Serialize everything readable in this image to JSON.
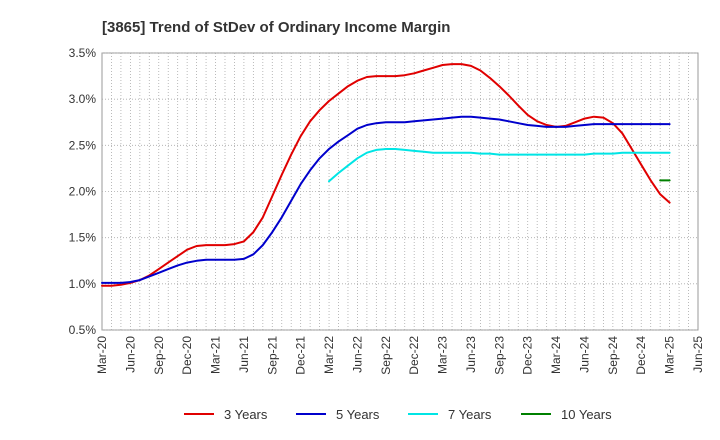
{
  "chart_data": {
    "type": "line",
    "title": "[3865]  Trend of StDev of Ordinary Income Margin",
    "xlabel": "",
    "ylabel": "",
    "ylim": [
      0.5,
      3.5
    ],
    "y_ticks": [
      "0.5%",
      "1.0%",
      "1.5%",
      "2.0%",
      "2.5%",
      "3.0%",
      "3.5%"
    ],
    "y_tick_values": [
      0.5,
      1.0,
      1.5,
      2.0,
      2.5,
      3.0,
      3.5
    ],
    "x_ticks": [
      "Mar-20",
      "Jun-20",
      "Sep-20",
      "Dec-20",
      "Mar-21",
      "Jun-21",
      "Sep-21",
      "Dec-21",
      "Mar-22",
      "Jun-22",
      "Sep-22",
      "Dec-22",
      "Mar-23",
      "Jun-23",
      "Sep-23",
      "Dec-23",
      "Mar-24",
      "Jun-24",
      "Sep-24",
      "Dec-24",
      "Mar-25",
      "Jun-25"
    ],
    "grid": true,
    "legend_position": "bottom",
    "series": [
      {
        "name": "3 Years",
        "color": "#e00000",
        "x": [
          "2020-03",
          "2020-04",
          "2020-05",
          "2020-06",
          "2020-07",
          "2020-08",
          "2020-09",
          "2020-10",
          "2020-11",
          "2020-12",
          "2021-01",
          "2021-02",
          "2021-03",
          "2021-04",
          "2021-05",
          "2021-06",
          "2021-07",
          "2021-08",
          "2021-09",
          "2021-10",
          "2021-11",
          "2021-12",
          "2022-01",
          "2022-02",
          "2022-03",
          "2022-04",
          "2022-05",
          "2022-06",
          "2022-07",
          "2022-08",
          "2022-09",
          "2022-10",
          "2022-11",
          "2022-12",
          "2023-01",
          "2023-02",
          "2023-03",
          "2023-04",
          "2023-05",
          "2023-06",
          "2023-07",
          "2023-08",
          "2023-09",
          "2023-10",
          "2023-11",
          "2023-12",
          "2024-01",
          "2024-02",
          "2024-03",
          "2024-04",
          "2024-05",
          "2024-06",
          "2024-07",
          "2024-08",
          "2024-09",
          "2024-10",
          "2024-11",
          "2024-12",
          "2025-01",
          "2025-02",
          "2025-03"
        ],
        "values": [
          0.98,
          0.98,
          0.99,
          1.01,
          1.04,
          1.09,
          1.16,
          1.23,
          1.3,
          1.37,
          1.41,
          1.42,
          1.42,
          1.42,
          1.43,
          1.46,
          1.56,
          1.72,
          1.95,
          2.18,
          2.4,
          2.6,
          2.76,
          2.88,
          2.98,
          3.06,
          3.14,
          3.2,
          3.24,
          3.25,
          3.25,
          3.25,
          3.26,
          3.28,
          3.31,
          3.34,
          3.37,
          3.38,
          3.38,
          3.36,
          3.31,
          3.23,
          3.14,
          3.04,
          2.93,
          2.83,
          2.76,
          2.72,
          2.7,
          2.71,
          2.75,
          2.79,
          2.81,
          2.8,
          2.74,
          2.63,
          2.46,
          2.29,
          2.12,
          1.97,
          1.88
        ]
      },
      {
        "name": "5 Years",
        "color": "#0000cc",
        "x": [
          "2020-03",
          "2020-04",
          "2020-05",
          "2020-06",
          "2020-07",
          "2020-08",
          "2020-09",
          "2020-10",
          "2020-11",
          "2020-12",
          "2021-01",
          "2021-02",
          "2021-03",
          "2021-04",
          "2021-05",
          "2021-06",
          "2021-07",
          "2021-08",
          "2021-09",
          "2021-10",
          "2021-11",
          "2021-12",
          "2022-01",
          "2022-02",
          "2022-03",
          "2022-04",
          "2022-05",
          "2022-06",
          "2022-07",
          "2022-08",
          "2022-09",
          "2022-10",
          "2022-11",
          "2022-12",
          "2023-01",
          "2023-02",
          "2023-03",
          "2023-04",
          "2023-05",
          "2023-06",
          "2023-07",
          "2023-08",
          "2023-09",
          "2023-10",
          "2023-11",
          "2023-12",
          "2024-01",
          "2024-02",
          "2024-03",
          "2024-04",
          "2024-05",
          "2024-06",
          "2024-07",
          "2024-08",
          "2024-09",
          "2024-10",
          "2024-11",
          "2024-12",
          "2025-01",
          "2025-02",
          "2025-03"
        ],
        "values": [
          1.01,
          1.01,
          1.01,
          1.02,
          1.04,
          1.08,
          1.12,
          1.16,
          1.2,
          1.23,
          1.25,
          1.26,
          1.26,
          1.26,
          1.26,
          1.27,
          1.32,
          1.42,
          1.56,
          1.72,
          1.9,
          2.08,
          2.23,
          2.36,
          2.46,
          2.54,
          2.61,
          2.68,
          2.72,
          2.74,
          2.75,
          2.75,
          2.75,
          2.76,
          2.77,
          2.78,
          2.79,
          2.8,
          2.81,
          2.81,
          2.8,
          2.79,
          2.78,
          2.76,
          2.74,
          2.72,
          2.71,
          2.7,
          2.7,
          2.7,
          2.71,
          2.72,
          2.73,
          2.73,
          2.73,
          2.73,
          2.73,
          2.73,
          2.73,
          2.73,
          2.73
        ]
      },
      {
        "name": "7 Years",
        "color": "#00e5e5",
        "x": [
          "2022-03",
          "2022-04",
          "2022-05",
          "2022-06",
          "2022-07",
          "2022-08",
          "2022-09",
          "2022-10",
          "2022-11",
          "2022-12",
          "2023-01",
          "2023-02",
          "2023-03",
          "2023-04",
          "2023-05",
          "2023-06",
          "2023-07",
          "2023-08",
          "2023-09",
          "2023-10",
          "2023-11",
          "2023-12",
          "2024-01",
          "2024-02",
          "2024-03",
          "2024-04",
          "2024-05",
          "2024-06",
          "2024-07",
          "2024-08",
          "2024-09",
          "2024-10",
          "2024-11",
          "2024-12",
          "2025-01",
          "2025-02",
          "2025-03"
        ],
        "values": [
          2.11,
          2.2,
          2.28,
          2.36,
          2.42,
          2.45,
          2.46,
          2.46,
          2.45,
          2.44,
          2.43,
          2.42,
          2.42,
          2.42,
          2.42,
          2.42,
          2.41,
          2.41,
          2.4,
          2.4,
          2.4,
          2.4,
          2.4,
          2.4,
          2.4,
          2.4,
          2.4,
          2.4,
          2.41,
          2.41,
          2.41,
          2.42,
          2.42,
          2.42,
          2.42,
          2.42,
          2.42
        ]
      },
      {
        "name": "10 Years",
        "color": "#008000",
        "x": [
          "2025-02",
          "2025-03"
        ],
        "values": [
          2.12,
          2.12
        ]
      }
    ]
  }
}
